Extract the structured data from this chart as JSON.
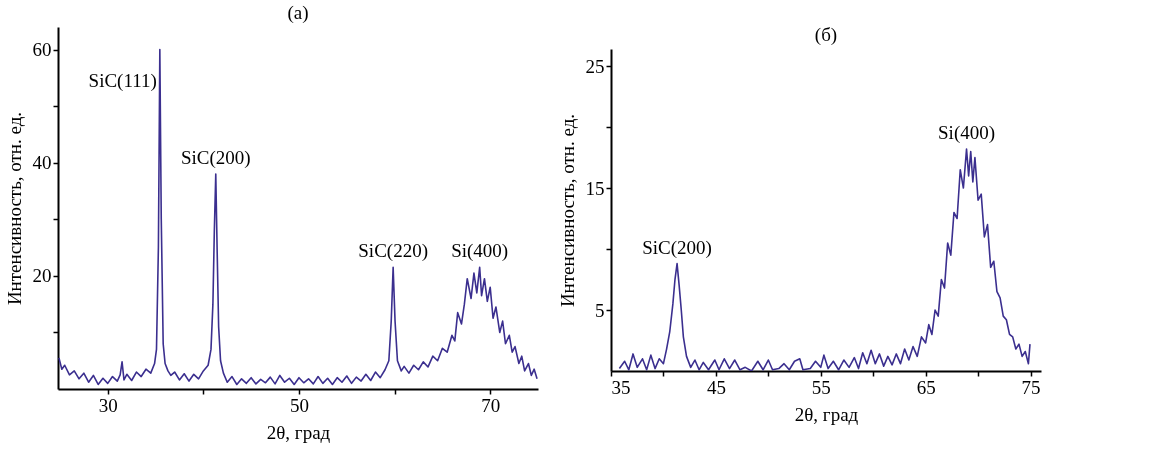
{
  "chart_data": [
    {
      "type": "line",
      "title": "(a)",
      "xlabel": "2θ, град",
      "ylabel": "Интенсивность, отн. ед.",
      "x": [
        24.9,
        25.2,
        25.5,
        26,
        26.5,
        27,
        27.5,
        28,
        28.5,
        29,
        29.5,
        30,
        30.5,
        31,
        31.3,
        31.5,
        31.7,
        32,
        32.5,
        33,
        33.5,
        34,
        34.5,
        34.9,
        35.1,
        35.3,
        35.45,
        35.6,
        35.8,
        36,
        36.3,
        36.6,
        37,
        37.5,
        38,
        38.5,
        39,
        39.5,
        40,
        40.5,
        40.8,
        41.0,
        41.15,
        41.3,
        41.45,
        41.6,
        41.8,
        42.1,
        42.5,
        43,
        43.5,
        44,
        44.5,
        45,
        45.5,
        46,
        46.5,
        47,
        47.5,
        48,
        48.5,
        49,
        49.5,
        50,
        50.5,
        51,
        51.5,
        52,
        52.5,
        53,
        53.5,
        54,
        54.5,
        55,
        55.5,
        56,
        56.5,
        57,
        57.5,
        58,
        58.5,
        59,
        59.4,
        59.65,
        59.85,
        60.05,
        60.3,
        60.7,
        61,
        61.5,
        62,
        62.5,
        63,
        63.5,
        64,
        64.5,
        65,
        65.5,
        66,
        66.3,
        66.6,
        67,
        67.3,
        67.6,
        68,
        68.3,
        68.6,
        68.9,
        69.1,
        69.4,
        69.7,
        70,
        70.3,
        70.6,
        71,
        71.3,
        71.6,
        72,
        72.3,
        72.6,
        73,
        73.3,
        73.6,
        74,
        74.3,
        74.6,
        74.9
      ],
      "series": [
        {
          "color": "#3b2f8f",
          "values": [
            5.5,
            3.5,
            4.2,
            2.5,
            3.2,
            1.8,
            2.8,
            1.2,
            2.4,
            0.8,
            1.9,
            1.0,
            2.2,
            1.4,
            2.5,
            4.8,
            1.6,
            2.6,
            1.5,
            3.0,
            2.2,
            3.5,
            2.8,
            4.5,
            7,
            25,
            60,
            30,
            8,
            4.5,
            3.2,
            2.4,
            3.0,
            1.6,
            2.7,
            1.4,
            2.6,
            1.8,
            3.2,
            4.2,
            7,
            15,
            28,
            38,
            24,
            11,
            5,
            2.8,
            1.2,
            2.2,
            0.8,
            1.8,
            1.0,
            2.0,
            0.9,
            1.7,
            1.1,
            2.1,
            0.9,
            2.4,
            1.2,
            1.9,
            0.8,
            2.0,
            1.1,
            1.8,
            0.9,
            2.2,
            1.0,
            1.9,
            0.8,
            2.0,
            1.2,
            2.3,
            1.0,
            2.1,
            1.4,
            2.6,
            1.5,
            3.0,
            2.0,
            3.4,
            5,
            12,
            21.5,
            12,
            5,
            3.2,
            4.0,
            2.8,
            4.2,
            3.4,
            4.8,
            3.9,
            5.8,
            5.0,
            7.2,
            6.5,
            9.5,
            8.5,
            13.5,
            11.5,
            15,
            19.5,
            16,
            20.5,
            17,
            21.5,
            16.5,
            19.5,
            15.5,
            18,
            12.5,
            14.5,
            10,
            12,
            8,
            9.5,
            6.5,
            7.5,
            4.5,
            5.8,
            3.2,
            4.5,
            2.4,
            3.5,
            1.8
          ]
        }
      ],
      "xlim": [
        24.8,
        75
      ],
      "ylim": [
        0,
        64
      ],
      "xticks": [
        30,
        {
          "value": 40,
          "label": null
        },
        50,
        {
          "value": 60,
          "label": null
        },
        70
      ],
      "yticks": [
        {
          "value": 10,
          "label": null
        },
        20,
        {
          "value": 30,
          "label": null
        },
        40,
        {
          "value": 50,
          "label": null
        },
        60
      ],
      "annotations": [
        {
          "text": "SiC(111)",
          "x": 35.45,
          "y": 60
        },
        {
          "text": "SiC(200)",
          "x": 41.3,
          "y": 38
        },
        {
          "text": "SiC(220)",
          "x": 59.85,
          "y": 21.5
        },
        {
          "text": "Si(400)",
          "x": 68.9,
          "y": 21.5
        }
      ]
    },
    {
      "type": "line",
      "title": "(б)",
      "xlabel": "2θ, град",
      "ylabel": "Интенсивность, отн. ед.",
      "x": [
        35.8,
        36.3,
        36.7,
        37.1,
        37.5,
        38,
        38.4,
        38.8,
        39.2,
        39.6,
        40,
        40.3,
        40.6,
        40.9,
        41.1,
        41.3,
        41.5,
        41.7,
        41.9,
        42.2,
        42.6,
        43,
        43.4,
        43.8,
        44.3,
        44.9,
        45.3,
        45.8,
        46.3,
        46.8,
        47.3,
        47.8,
        48.4,
        49,
        49.5,
        50,
        50.4,
        51,
        51.5,
        52,
        52.5,
        53,
        53.3,
        54,
        54.5,
        55,
        55.3,
        55.7,
        56.2,
        56.7,
        57.2,
        57.7,
        58.2,
        58.6,
        59,
        59.4,
        59.8,
        60.2,
        60.6,
        61,
        61.4,
        61.8,
        62.2,
        62.6,
        63,
        63.4,
        63.8,
        64.2,
        64.6,
        65,
        65.3,
        65.6,
        65.9,
        66.2,
        66.5,
        66.8,
        67.1,
        67.4,
        67.7,
        68,
        68.3,
        68.6,
        68.9,
        69.1,
        69.3,
        69.5,
        69.7,
        70,
        70.3,
        70.6,
        70.9,
        71.2,
        71.5,
        71.8,
        72.1,
        72.4,
        72.7,
        73,
        73.3,
        73.6,
        73.9,
        74.2,
        74.5,
        74.8,
        74.95
      ],
      "series": [
        {
          "color": "#3b2f8f",
          "values": [
            0.2,
            0.8,
            0.1,
            1.4,
            0.3,
            1.0,
            0.1,
            1.3,
            0.2,
            1.0,
            0.6,
            1.8,
            3.2,
            5.5,
            7.5,
            8.8,
            7.0,
            5.0,
            2.8,
            1.2,
            0.3,
            0.9,
            0.1,
            0.7,
            0.1,
            0.9,
            0.1,
            1.0,
            0.2,
            0.9,
            0.1,
            0.3,
            0,
            0.8,
            0.1,
            0.9,
            0.1,
            0.2,
            0.6,
            0.1,
            0.8,
            1.0,
            0.1,
            0.2,
            0.8,
            0.3,
            1.3,
            0.2,
            0.8,
            0.1,
            0.9,
            0.3,
            1.1,
            0.2,
            1.5,
            0.6,
            1.7,
            0.6,
            1.4,
            0.4,
            1.2,
            0.5,
            1.4,
            0.6,
            1.8,
            0.9,
            2.0,
            1.2,
            2.8,
            2.3,
            3.8,
            3.0,
            5.0,
            4.5,
            7.5,
            6.8,
            10.5,
            9.5,
            13,
            12.5,
            16.5,
            15,
            18.2,
            16,
            18,
            15.5,
            17.5,
            14,
            14.5,
            11,
            12,
            8.5,
            9,
            6.5,
            6.0,
            4.5,
            4.2,
            3.0,
            2.8,
            1.8,
            2.2,
            1.2,
            1.6,
            0.6,
            2.2
          ]
        }
      ],
      "xlim": [
        35,
        76
      ],
      "ylim": [
        0,
        26.4
      ],
      "xticks": [
        35,
        {
          "value": 40,
          "label": null
        },
        45,
        {
          "value": 50,
          "label": null
        },
        55,
        {
          "value": 60,
          "label": null
        },
        65,
        {
          "value": 70,
          "label": null
        },
        75
      ],
      "yticks": [
        5,
        {
          "value": 10,
          "label": null
        },
        15,
        {
          "value": 20,
          "label": null
        },
        25
      ],
      "annotations": [
        {
          "text": "SiC(200)",
          "x": 41.3,
          "y": 8.8
        },
        {
          "text": "Si(400)",
          "x": 68.9,
          "y": 18.2
        }
      ]
    }
  ]
}
